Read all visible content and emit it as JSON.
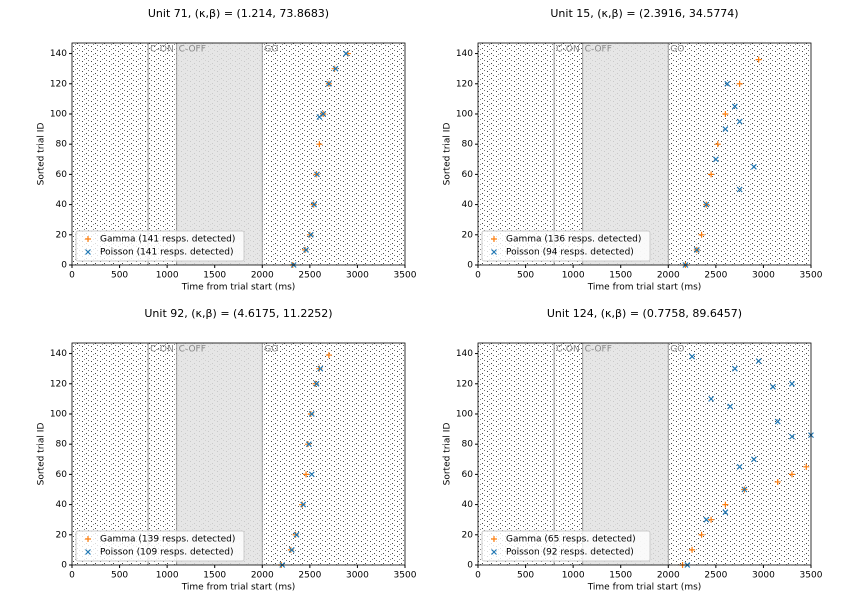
{
  "chart_data": [
    {
      "type": "scatter",
      "title": "Unit 71, (κ,β) = (1.214, 73.8683)",
      "xlabel": "Time from trial start (ms)",
      "ylabel": "Sorted trial ID",
      "xlim": [
        0,
        3500
      ],
      "ylim": [
        0,
        147
      ],
      "xticks": [
        0,
        500,
        1000,
        1500,
        2000,
        2500,
        3000,
        3500
      ],
      "yticks": [
        0,
        20,
        40,
        60,
        80,
        100,
        120,
        140
      ],
      "span": [
        1100,
        2000
      ],
      "events": [
        {
          "label": "C-ON",
          "x": 800
        },
        {
          "label": "C-OFF",
          "x": 1100
        },
        {
          "label": "GO",
          "x": 2000
        }
      ],
      "legend": "lower left",
      "series": [
        {
          "name": "Gamma (141 resps. detected)",
          "color": "#ff7f0e",
          "marker": "+",
          "x": [
            2320,
            2450,
            2500,
            2540,
            2570,
            2600,
            2640,
            2700,
            2760,
            2900
          ],
          "values": [
            0,
            10,
            20,
            40,
            60,
            80,
            100,
            120,
            130,
            140
          ]
        },
        {
          "name": "Poisson (141 resps. detected)",
          "color": "#1f77b4",
          "marker": "x",
          "x": [
            2330,
            2460,
            2510,
            2545,
            2575,
            2600,
            2640,
            2700,
            2770,
            2880
          ],
          "values": [
            0,
            10,
            20,
            40,
            60,
            98,
            100,
            120,
            130,
            140
          ]
        }
      ]
    },
    {
      "type": "scatter",
      "title": "Unit 15, (κ,β) = (2.3916, 34.5774)",
      "xlabel": "Time from trial start (ms)",
      "ylabel": "Sorted trial ID",
      "xlim": [
        0,
        3500
      ],
      "ylim": [
        0,
        147
      ],
      "xticks": [
        0,
        500,
        1000,
        1500,
        2000,
        2500,
        3000,
        3500
      ],
      "yticks": [
        0,
        20,
        40,
        60,
        80,
        100,
        120,
        140
      ],
      "span": [
        1100,
        2000
      ],
      "events": [
        {
          "label": "C-ON",
          "x": 800
        },
        {
          "label": "C-OFF",
          "x": 1100
        },
        {
          "label": "GO",
          "x": 2000
        }
      ],
      "legend": "lower left",
      "series": [
        {
          "name": "Gamma (136 resps. detected)",
          "color": "#ff7f0e",
          "marker": "+",
          "x": [
            2180,
            2300,
            2350,
            2400,
            2450,
            2520,
            2600,
            2750,
            2950
          ],
          "values": [
            0,
            10,
            20,
            40,
            60,
            80,
            100,
            120,
            136
          ]
        },
        {
          "name": "Poisson (94 resps. detected)",
          "color": "#1f77b4",
          "marker": "x",
          "x": [
            2180,
            2300,
            2400,
            2750,
            2500,
            2900,
            2600,
            2750,
            2700,
            2620
          ],
          "values": [
            0,
            10,
            40,
            50,
            70,
            65,
            90,
            95,
            105,
            120
          ]
        }
      ]
    },
    {
      "type": "scatter",
      "title": "Unit 92, (κ,β) = (4.6175, 11.2252)",
      "xlabel": "Time from trial start (ms)",
      "ylabel": "Sorted trial ID",
      "xlim": [
        0,
        3500
      ],
      "ylim": [
        0,
        147
      ],
      "xticks": [
        0,
        500,
        1000,
        1500,
        2000,
        2500,
        3000,
        3500
      ],
      "yticks": [
        0,
        20,
        40,
        60,
        80,
        100,
        120,
        140
      ],
      "span": [
        1100,
        2000
      ],
      "events": [
        {
          "label": "C-ON",
          "x": 800
        },
        {
          "label": "C-OFF",
          "x": 1100
        },
        {
          "label": "GO",
          "x": 2000
        }
      ],
      "legend": "lower left",
      "series": [
        {
          "name": "Gamma (139 resps. detected)",
          "color": "#ff7f0e",
          "marker": "+",
          "x": [
            2200,
            2300,
            2350,
            2420,
            2460,
            2480,
            2510,
            2560,
            2600,
            2700
          ],
          "values": [
            0,
            10,
            20,
            40,
            60,
            80,
            100,
            120,
            130,
            139
          ]
        },
        {
          "name": "Poisson (109 resps. detected)",
          "color": "#1f77b4",
          "marker": "x",
          "x": [
            2210,
            2310,
            2360,
            2430,
            2520,
            2490,
            2520,
            2570,
            2610
          ],
          "values": [
            0,
            10,
            20,
            40,
            60,
            80,
            100,
            120,
            130
          ]
        }
      ]
    },
    {
      "type": "scatter",
      "title": "Unit 124, (κ,β) = (0.7758, 89.6457)",
      "xlabel": "Time from trial start (ms)",
      "ylabel": "Sorted trial ID",
      "xlim": [
        0,
        3500
      ],
      "ylim": [
        0,
        147
      ],
      "xticks": [
        0,
        500,
        1000,
        1500,
        2000,
        2500,
        3000,
        3500
      ],
      "yticks": [
        0,
        20,
        40,
        60,
        80,
        100,
        120,
        140
      ],
      "span": [
        1100,
        2000
      ],
      "events": [
        {
          "label": "C-ON",
          "x": 800
        },
        {
          "label": "C-OFF",
          "x": 1100
        },
        {
          "label": "GO",
          "x": 2000
        }
      ],
      "legend": "lower left",
      "series": [
        {
          "name": "Gamma (65 resps. detected)",
          "color": "#ff7f0e",
          "marker": "+",
          "x": [
            2150,
            2250,
            2350,
            2450,
            2600,
            2800,
            3150,
            3300,
            3450
          ],
          "values": [
            0,
            10,
            20,
            30,
            40,
            50,
            55,
            60,
            65
          ]
        },
        {
          "name": "Poisson (92 resps. detected)",
          "color": "#1f77b4",
          "marker": "x",
          "x": [
            2200,
            2400,
            2600,
            2800,
            2250,
            2700,
            2950,
            3100,
            3300,
            3150,
            3300,
            3500,
            2450,
            2650,
            2900,
            2750
          ],
          "values": [
            0,
            30,
            35,
            50,
            138,
            130,
            135,
            118,
            120,
            95,
            85,
            86,
            110,
            105,
            70,
            65
          ]
        }
      ]
    }
  ]
}
